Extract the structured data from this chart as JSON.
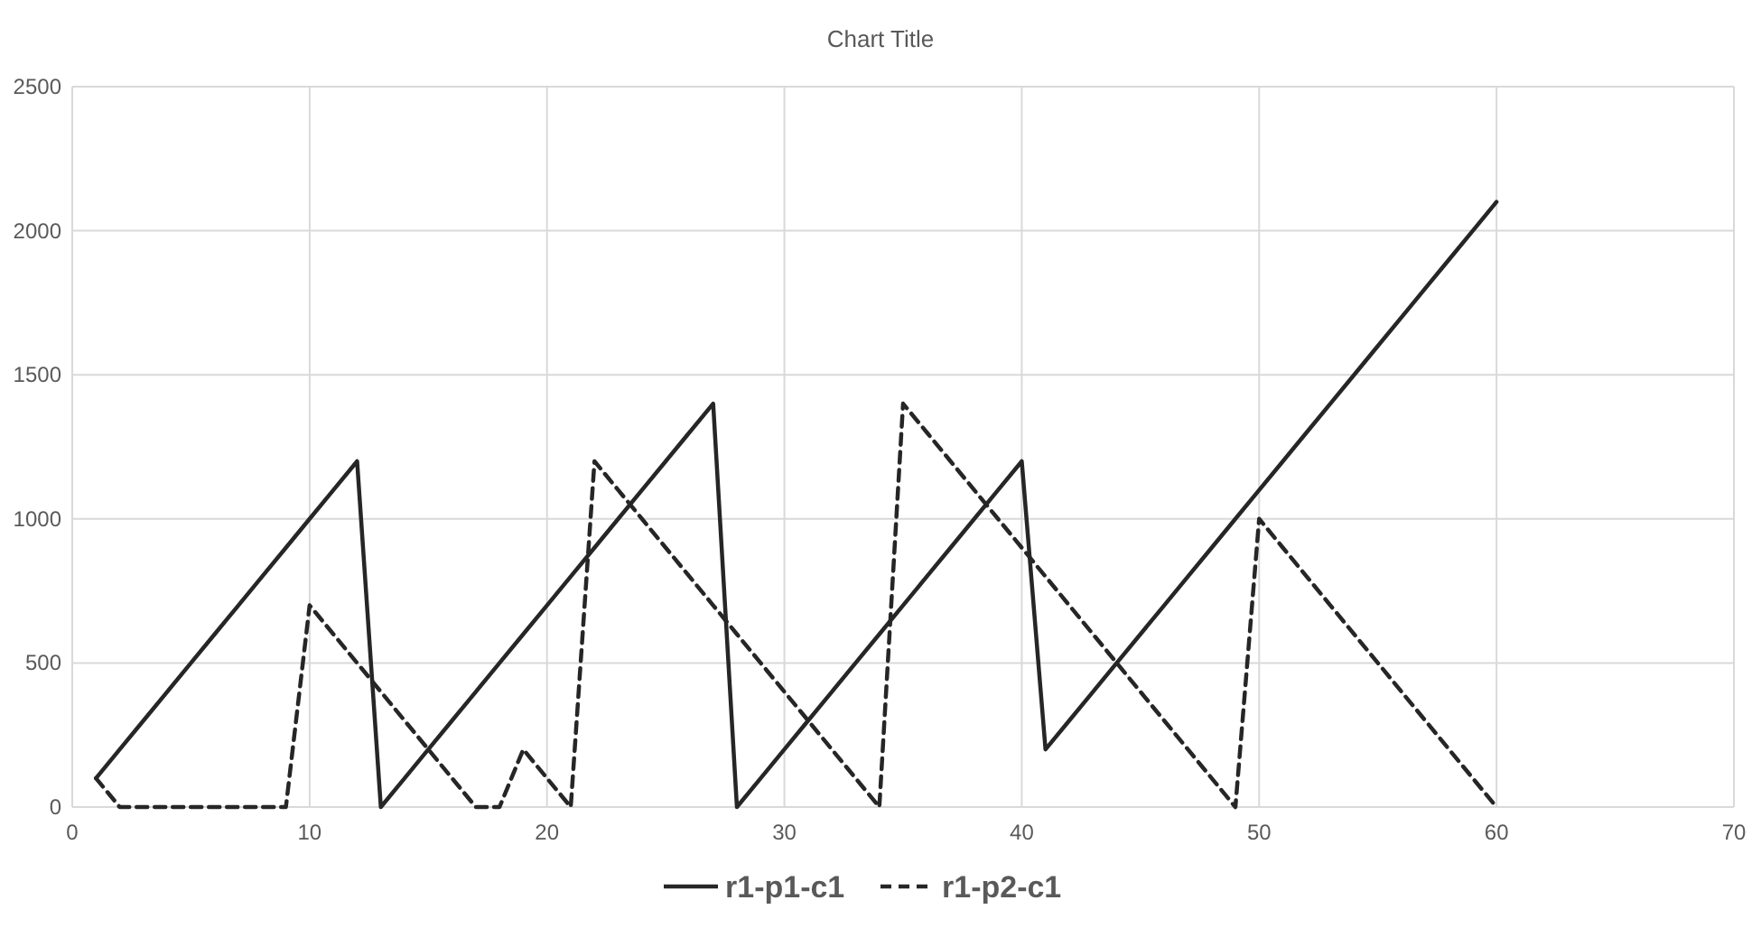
{
  "chart_data": {
    "type": "line",
    "title": "Chart Title",
    "x": [
      1,
      2,
      3,
      4,
      5,
      6,
      7,
      8,
      9,
      10,
      11,
      12,
      13,
      14,
      15,
      16,
      17,
      18,
      19,
      20,
      21,
      22,
      23,
      24,
      25,
      26,
      27,
      28,
      29,
      30,
      31,
      32,
      33,
      34,
      35,
      36,
      37,
      38,
      39,
      40,
      41,
      42,
      43,
      44,
      45,
      46,
      47,
      48,
      49,
      50,
      51,
      52,
      53,
      54,
      55,
      56,
      57,
      58,
      59,
      60
    ],
    "series": [
      {
        "name": "r1-p1-c1",
        "color": "#262626",
        "line_style": "solid",
        "values": [
          100,
          200,
          300,
          400,
          500,
          600,
          700,
          800,
          900,
          1000,
          1100,
          1200,
          0,
          100,
          200,
          300,
          400,
          500,
          600,
          700,
          800,
          900,
          1000,
          1100,
          1200,
          1300,
          1400,
          0,
          100,
          200,
          300,
          400,
          500,
          600,
          700,
          800,
          900,
          1000,
          1100,
          1200,
          200,
          300,
          400,
          500,
          600,
          700,
          800,
          900,
          1000,
          1100,
          1200,
          1300,
          1400,
          1500,
          1600,
          1700,
          1800,
          1900,
          2000,
          2100
        ]
      },
      {
        "name": "r1-p2-c1",
        "color": "#262626",
        "line_style": "dashed",
        "values": [
          100,
          0,
          0,
          0,
          0,
          0,
          0,
          0,
          0,
          700,
          600,
          500,
          400,
          300,
          200,
          100,
          0,
          0,
          200,
          100,
          0,
          1200,
          1100,
          1000,
          900,
          800,
          700,
          600,
          500,
          400,
          300,
          200,
          100,
          0,
          1400,
          1300,
          1200,
          1100,
          1000,
          900,
          800,
          700,
          600,
          500,
          400,
          300,
          200,
          100,
          0,
          1000,
          900,
          800,
          700,
          600,
          500,
          400,
          300,
          200,
          100,
          0
        ]
      }
    ],
    "xlim": [
      0,
      70
    ],
    "xticks": [
      0,
      10,
      20,
      30,
      40,
      50,
      60,
      70
    ],
    "ylim": [
      0,
      2500
    ],
    "yticks": [
      0,
      500,
      1000,
      1500,
      2000,
      2500
    ],
    "grid": true,
    "legend": "bottom",
    "marker": "none"
  }
}
